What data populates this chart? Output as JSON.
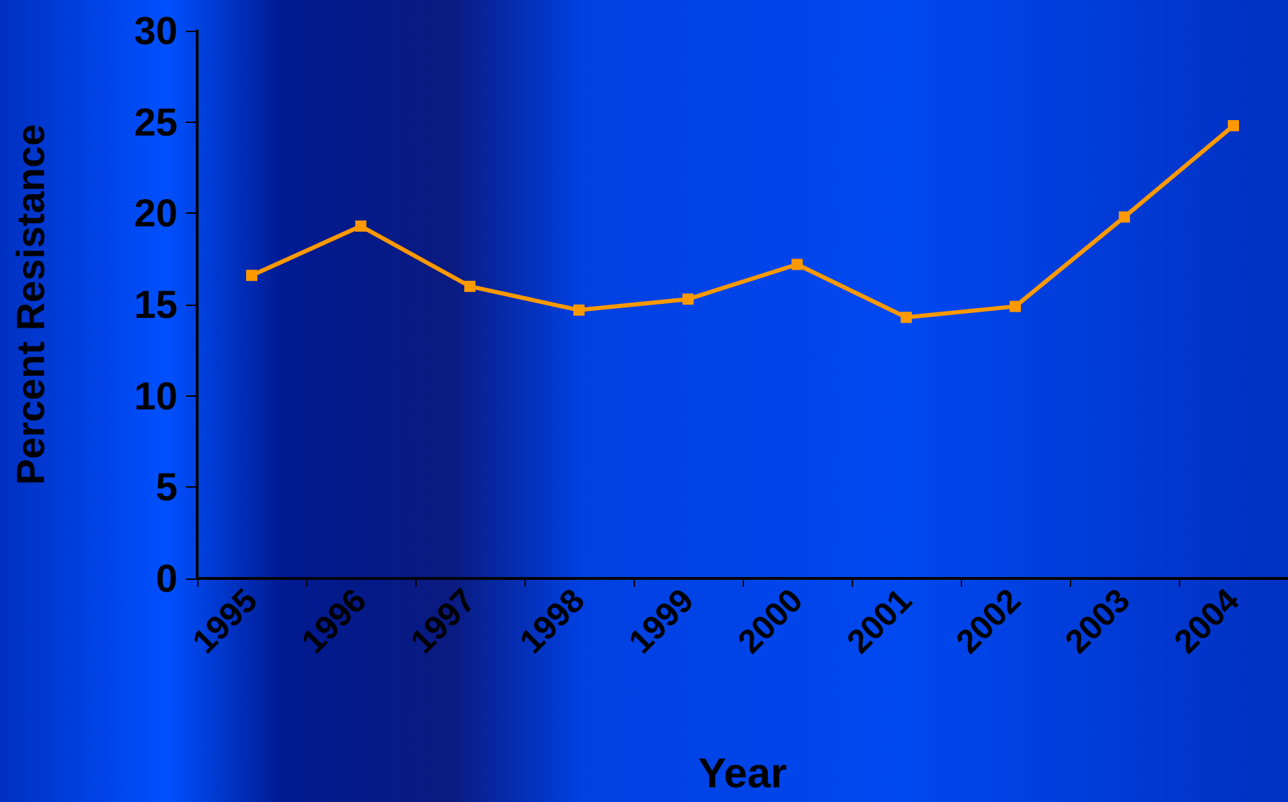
{
  "chart_data": {
    "type": "line",
    "xlabel": "Year",
    "ylabel": "Percent Resistance",
    "categories": [
      "1995",
      "1996",
      "1997",
      "1998",
      "1999",
      "2000",
      "2001",
      "2002",
      "2003",
      "2004"
    ],
    "series": [
      {
        "color": "#ff9900",
        "values": [
          16.6,
          19.3,
          16.0,
          14.7,
          15.3,
          17.2,
          14.3,
          14.9,
          19.8,
          24.8
        ]
      }
    ],
    "ylim": [
      0,
      30
    ],
    "yticks": [
      0,
      5,
      10,
      15,
      20,
      25,
      30
    ],
    "grid": false,
    "marker": "square",
    "line_style": "solid"
  }
}
